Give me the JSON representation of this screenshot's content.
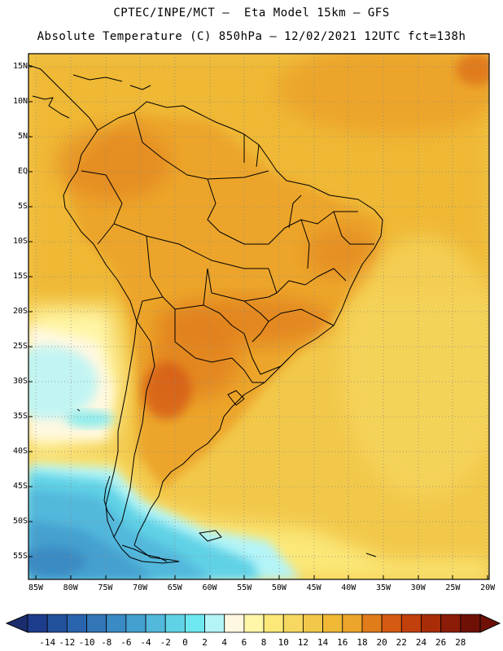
{
  "header": {
    "line1": "CPTEC/INPE/MCT –  Eta Model 15km – GFS",
    "line2": "Absolute Temperature (C) 850hPa – 12/02/2021 12UTC fct=138h"
  },
  "map": {
    "lat_labels": [
      "15N",
      "10N",
      "5N",
      "EQ",
      "5S",
      "10S",
      "15S",
      "20S",
      "25S",
      "30S",
      "35S",
      "40S",
      "45S",
      "50S",
      "55S"
    ],
    "lon_labels": [
      "85W",
      "80W",
      "75W",
      "70W",
      "65W",
      "60W",
      "55W",
      "50W",
      "45W",
      "40W",
      "35W",
      "30W",
      "25W",
      "20W"
    ]
  },
  "colorbar": {
    "labels": [
      "-14",
      "-12",
      "-10",
      "-8",
      "-6",
      "-4",
      "-2",
      "0",
      "2",
      "4",
      "6",
      "8",
      "10",
      "12",
      "14",
      "16",
      "18",
      "20",
      "22",
      "24",
      "26",
      "28"
    ],
    "colors": [
      "#1e3c8c",
      "#22519c",
      "#2a64ad",
      "#3276b8",
      "#3a8ac3",
      "#44a0cf",
      "#52b8dc",
      "#60d2e6",
      "#6ee8f0",
      "#b4f4f8",
      "#fff8e0",
      "#fff6a8",
      "#fbe878",
      "#f6d860",
      "#f2c84a",
      "#efb835",
      "#eca52a",
      "#e07c1a",
      "#d55a12",
      "#c2400c",
      "#a82c08",
      "#8c1c08",
      "#6e1006"
    ]
  }
}
